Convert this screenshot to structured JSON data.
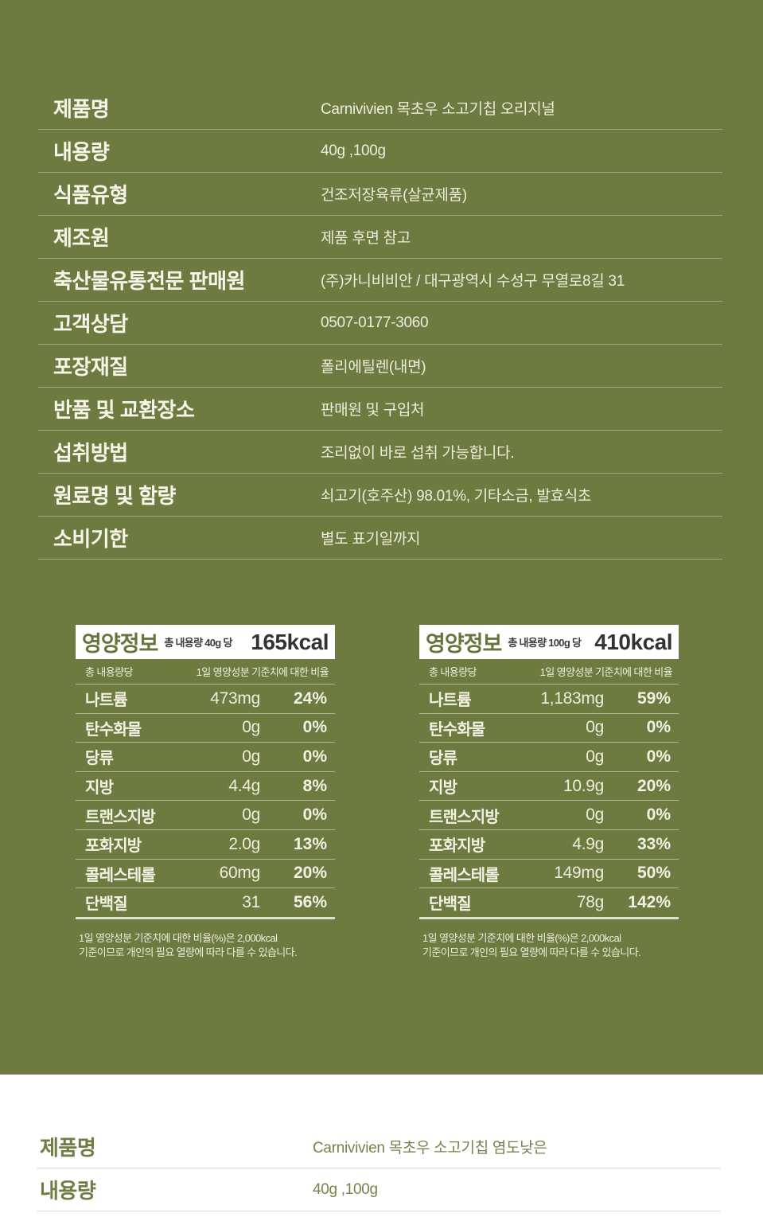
{
  "colors": {
    "background_olive": "#6d7b40",
    "cream_text": "#eeecdc",
    "header_box_white": "#ffffff",
    "nutrition_title_green": "#66753c",
    "dark_text": "#333333",
    "bottom_text_olive": "#6f7e44"
  },
  "spec_table": {
    "rows": [
      {
        "label": "제품명",
        "value": "Carnivivien 목초우 소고기칩 오리지널"
      },
      {
        "label": "내용량",
        "value": "40g ,100g"
      },
      {
        "label": "식품유형",
        "value": "건조저장육류(살균제품)"
      },
      {
        "label": "제조원",
        "value": "제품 후면 참고"
      },
      {
        "label": "축산물유통전문 판매원",
        "value": "(주)카니비비안 / 대구광역시 수성구 무열로8길 31"
      },
      {
        "label": "고객상담",
        "value": "0507-0177-3060"
      },
      {
        "label": "포장재질",
        "value": "폴리에틸렌(내면)"
      },
      {
        "label": "반품 및 교환장소",
        "value": "판매원 및 구입처"
      },
      {
        "label": "섭취방법",
        "value": "조리없이 바로 섭취 가능합니다."
      },
      {
        "label": "원료명 및 함량",
        "value": "쇠고기(호주산) 98.01%, 기타소금, 발효식초"
      },
      {
        "label": "소비기한",
        "value": "별도 표기일까지"
      }
    ]
  },
  "nutrition_panels": [
    {
      "title": "영양정보",
      "serving_label": "총 내용량 40g 당",
      "calories": "165kcal",
      "col_header_left": "총 내용량당",
      "col_header_right": "1일 영양성분 기준치에 대한 비율",
      "rows": [
        {
          "name": "나트륨",
          "amount": "473mg",
          "percent": "24%"
        },
        {
          "name": "탄수화물",
          "amount": "0g",
          "percent": "0%"
        },
        {
          "name": "당류",
          "amount": "0g",
          "percent": "0%"
        },
        {
          "name": "지방",
          "amount": "4.4g",
          "percent": "8%"
        },
        {
          "name": "트랜스지방",
          "amount": "0g",
          "percent": "0%"
        },
        {
          "name": "포화지방",
          "amount": "2.0g",
          "percent": "13%"
        },
        {
          "name": "콜레스테롤",
          "amount": "60mg",
          "percent": "20%"
        },
        {
          "name": "단백질",
          "amount": "31",
          "percent": "56%"
        }
      ],
      "footnote_line1": "1일 영양성분 기준치에 대한 비율(%)은 2,000kcal",
      "footnote_line2": "기준이므로 개인의 필요 열량에 따라 다를 수 있습니다."
    },
    {
      "title": "영양정보",
      "serving_label": "총 내용량 100g 당",
      "calories": "410kcal",
      "col_header_left": "총 내용량당",
      "col_header_right": "1일 영양성분 기준치에 대한 비율",
      "rows": [
        {
          "name": "나트륨",
          "amount": "1,183mg",
          "percent": "59%"
        },
        {
          "name": "탄수화물",
          "amount": "0g",
          "percent": "0%"
        },
        {
          "name": "당류",
          "amount": "0g",
          "percent": "0%"
        },
        {
          "name": "지방",
          "amount": "10.9g",
          "percent": "20%"
        },
        {
          "name": "트랜스지방",
          "amount": "0g",
          "percent": "0%"
        },
        {
          "name": "포화지방",
          "amount": "4.9g",
          "percent": "33%"
        },
        {
          "name": "콜레스테롤",
          "amount": "149mg",
          "percent": "50%"
        },
        {
          "name": "단백질",
          "amount": "78g",
          "percent": "142%"
        }
      ],
      "footnote_line1": "1일 영양성분 기준치에 대한 비율(%)은 2,000kcal",
      "footnote_line2": "기준이므로 개인의 필요 열량에 따라 다를 수 있습니다."
    }
  ],
  "spec_table_2": {
    "rows": [
      {
        "label": "제품명",
        "value": "Carnivivien 목초우 소고기칩 염도낮은"
      },
      {
        "label": "내용량",
        "value": "40g ,100g"
      }
    ]
  }
}
